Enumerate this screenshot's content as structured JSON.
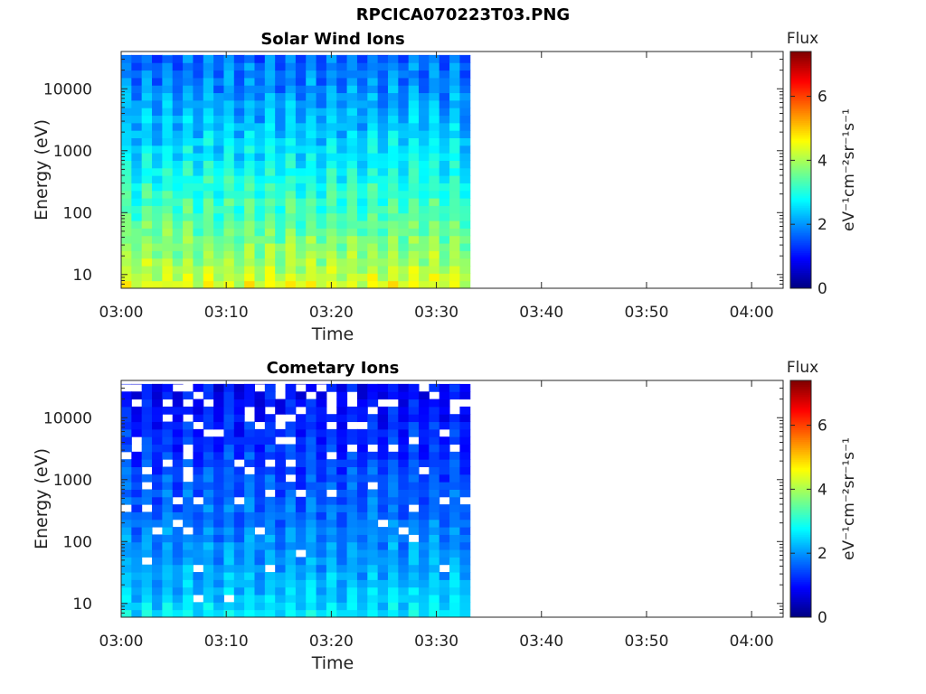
{
  "figure_title": "RPCICA070223T03.PNG",
  "colormap": [
    "#00007f",
    "#0000ff",
    "#007fff",
    "#00ffff",
    "#7fff7f",
    "#ffff00",
    "#ff7f00",
    "#ff0000",
    "#7f0000"
  ],
  "chart_data": [
    {
      "type": "heatmap",
      "title": "Solar Wind Ions",
      "xlabel": "Time",
      "ylabel": "Energy (eV)",
      "x_ticks": [
        "03:00",
        "03:10",
        "03:20",
        "03:30",
        "03:40",
        "03:50",
        "04:00"
      ],
      "xlim_minutes": [
        0,
        63
      ],
      "data_end_minute": 33.2,
      "y_scale": "log",
      "ylim": [
        6,
        40000
      ],
      "y_ticks": [
        10,
        100,
        1000,
        10000
      ],
      "y_tick_labels": [
        "10",
        "100",
        "1000",
        "10000"
      ],
      "colorbar": {
        "label": "Flux",
        "units": "eV⁻¹cm⁻²sr⁻¹s⁻¹",
        "range": [
          0,
          7.4
        ],
        "ticks": [
          0,
          2,
          4,
          6
        ],
        "tick_labels": [
          "0",
          "2",
          "4",
          "6"
        ]
      },
      "values_summary": {
        "flux_at_bottom": 4.4,
        "flux_at_top": 1.6,
        "flux_variation": 0.3,
        "empty_fraction_top": 0,
        "empty_fraction_low": 0
      }
    },
    {
      "type": "heatmap",
      "title": "Cometary Ions",
      "xlabel": "Time",
      "ylabel": "Energy (eV)",
      "x_ticks": [
        "03:00",
        "03:10",
        "03:20",
        "03:30",
        "03:40",
        "03:50",
        "04:00"
      ],
      "xlim_minutes": [
        0,
        63
      ],
      "data_end_minute": 33.2,
      "y_scale": "log",
      "ylim": [
        6,
        40000
      ],
      "y_ticks": [
        10,
        100,
        1000,
        10000
      ],
      "y_tick_labels": [
        "10",
        "100",
        "1000",
        "10000"
      ],
      "colorbar": {
        "label": "Flux",
        "units": "eV⁻¹cm⁻²sr⁻¹s⁻¹",
        "range": [
          0,
          7.4
        ],
        "ticks": [
          0,
          2,
          4,
          6
        ],
        "tick_labels": [
          "0",
          "2",
          "4",
          "6"
        ]
      },
      "values_summary": {
        "flux_at_bottom": 2.6,
        "flux_at_top": 0.9,
        "flux_variation": 0.25,
        "empty_fraction_top": 0.22,
        "empty_fraction_low": 0.02
      }
    }
  ]
}
